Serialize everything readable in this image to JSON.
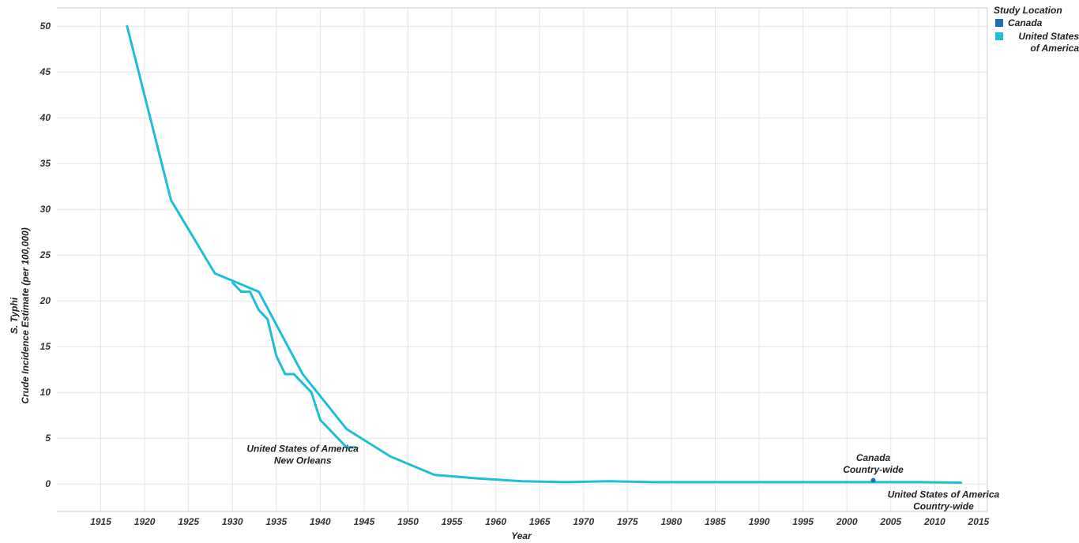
{
  "colors": {
    "canada": "#1f6fb4",
    "usa": "#1ebfd4",
    "grid": "#e6e6e6",
    "axis": "#cccccc"
  },
  "legend": {
    "title": "Study Location",
    "items": [
      {
        "label": "Canada",
        "color": "#1f6fb4"
      },
      {
        "label": "United States of America",
        "color": "#1ebfd4"
      }
    ]
  },
  "annotations": [
    {
      "lines": [
        "United States of America",
        "New Orleans"
      ],
      "x": 1938,
      "y": 3.5
    },
    {
      "lines": [
        "Canada",
        "Country-wide"
      ],
      "x": 2003,
      "y": 2.5
    },
    {
      "lines": [
        "United States of America",
        "Country-wide"
      ],
      "x": 2011,
      "y": -1.5
    }
  ],
  "chart_data": {
    "type": "line",
    "xlabel": "Year",
    "ylabel": "S. Typhi\nCrude Incidence Estimate (per 100,000)",
    "xlim": [
      1910,
      2016
    ],
    "ylim": [
      -3,
      52
    ],
    "xticks": [
      1915,
      1920,
      1925,
      1930,
      1935,
      1940,
      1945,
      1950,
      1955,
      1960,
      1965,
      1970,
      1975,
      1980,
      1985,
      1990,
      1995,
      2000,
      2005,
      2010,
      2015
    ],
    "yticks": [
      0,
      5,
      10,
      15,
      20,
      25,
      30,
      35,
      40,
      45,
      50
    ],
    "grid": true,
    "legend_position": "top-right",
    "series": [
      {
        "name": "United States of America",
        "subset": "Country-wide",
        "color": "#1ebfd4",
        "x": [
          1918,
          1923,
          1928,
          1933,
          1938,
          1943,
          1948,
          1953,
          1958,
          1963,
          1968,
          1973,
          1978,
          1983,
          1988,
          1993,
          1998,
          2003,
          2008,
          2013
        ],
        "y": [
          50,
          31,
          23,
          21,
          12,
          6,
          3,
          1,
          0.6,
          0.3,
          0.2,
          0.3,
          0.2,
          0.2,
          0.2,
          0.2,
          0.2,
          0.2,
          0.2,
          0.15
        ]
      },
      {
        "name": "United States of America",
        "subset": "New Orleans",
        "color": "#1ebfd4",
        "x": [
          1930,
          1931,
          1932,
          1933,
          1934,
          1935,
          1936,
          1937,
          1938,
          1939,
          1940,
          1941,
          1942,
          1943,
          1944
        ],
        "y": [
          22,
          21,
          21,
          19,
          18,
          14,
          12,
          12,
          11,
          10,
          7,
          6,
          5,
          4,
          4
        ]
      },
      {
        "name": "Canada",
        "subset": "Country-wide",
        "color": "#1f6fb4",
        "x": [
          2003
        ],
        "y": [
          0.4
        ]
      }
    ]
  }
}
